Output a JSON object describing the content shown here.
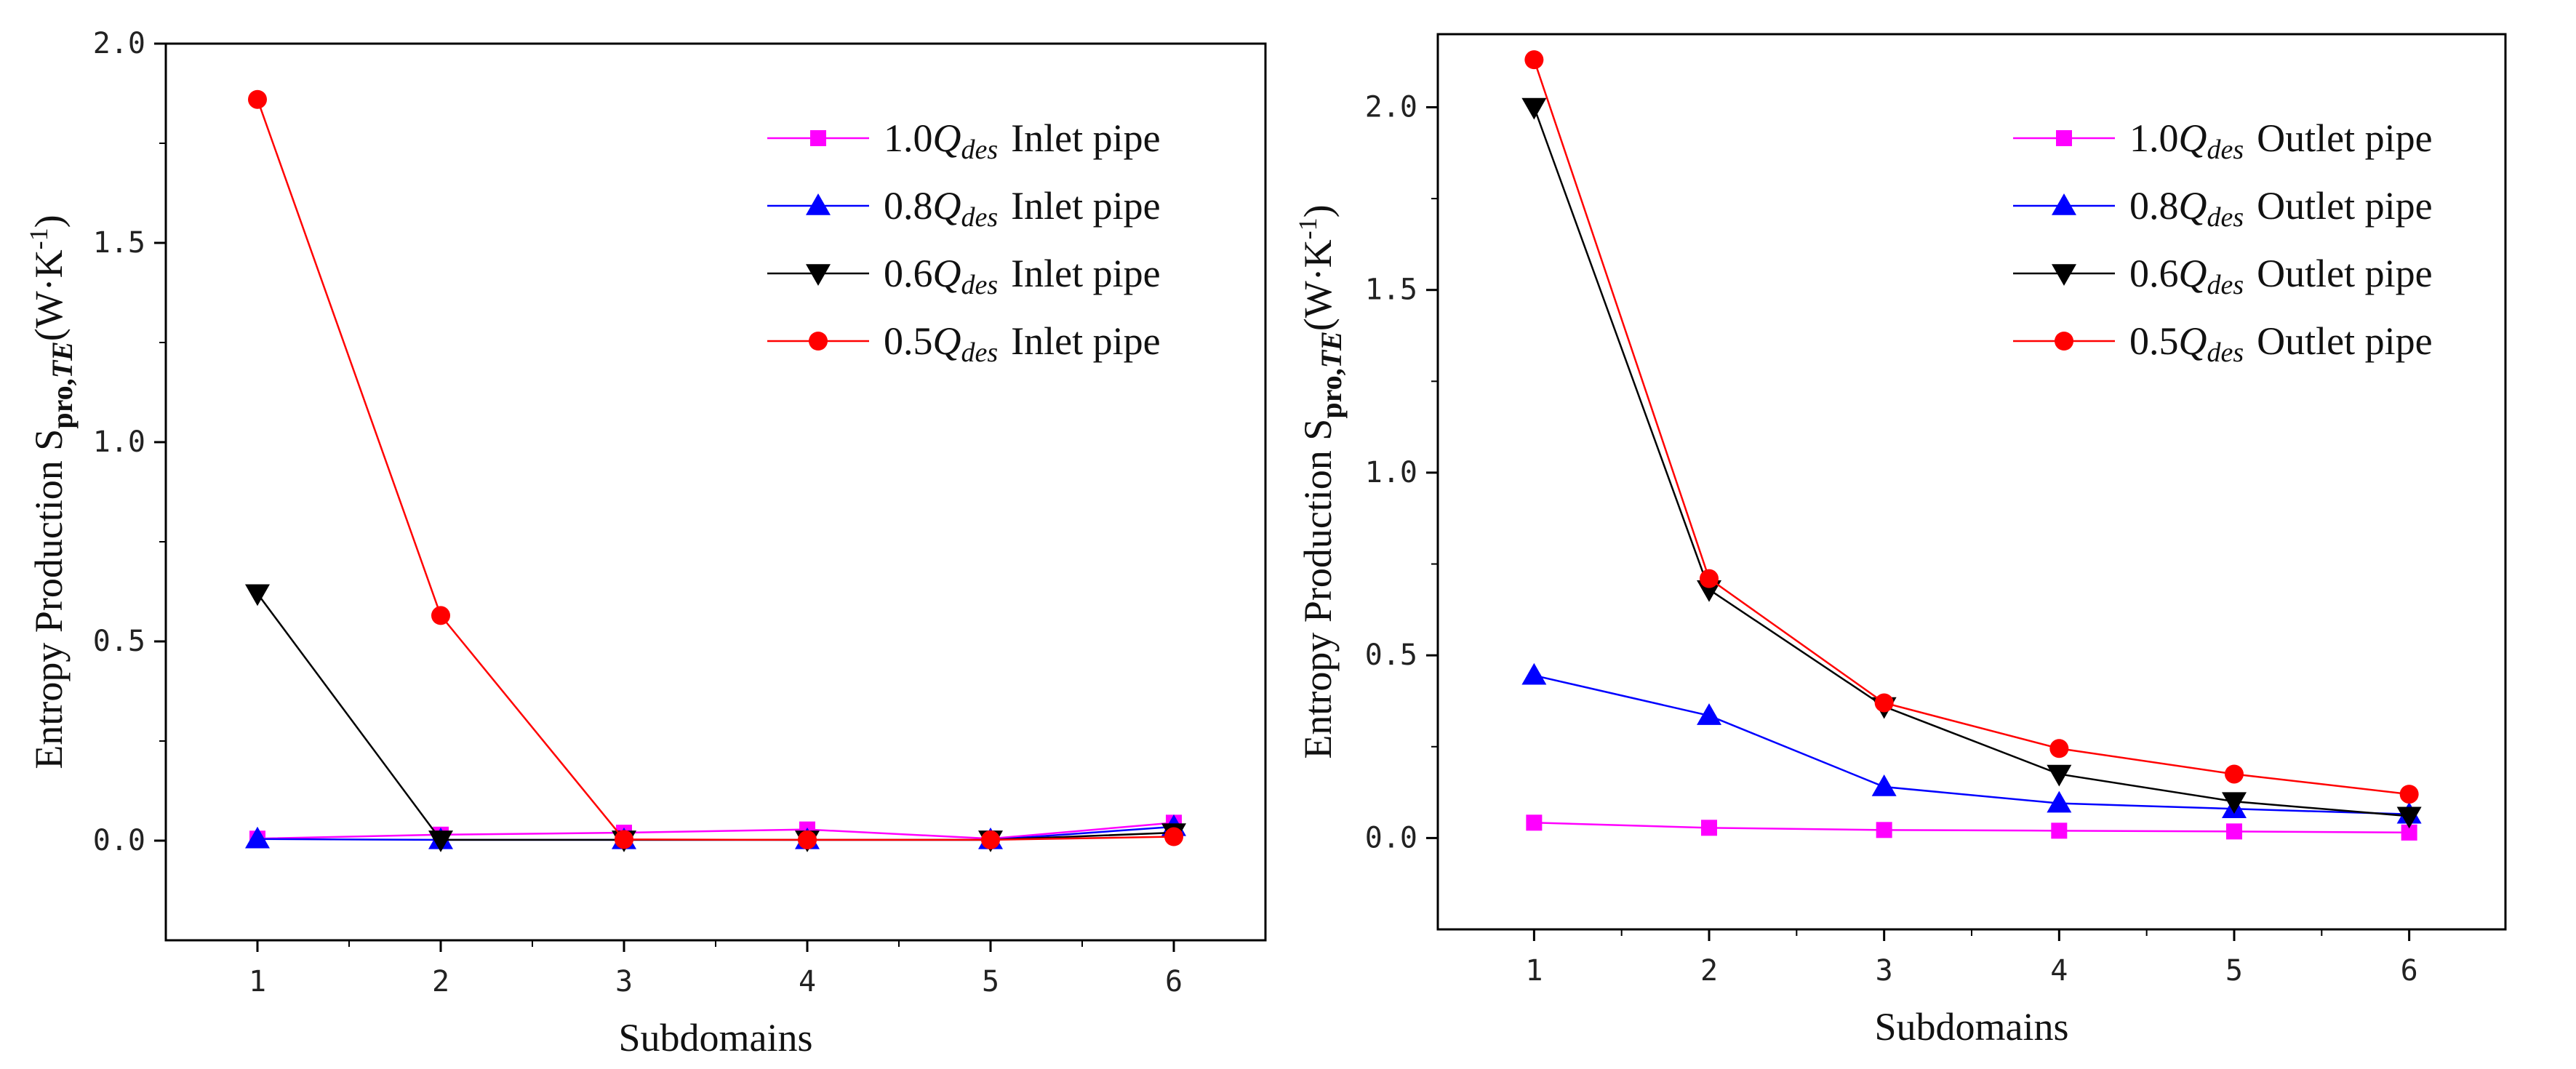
{
  "chart_data": [
    {
      "type": "line",
      "xlabel": "Subdomains",
      "ylabel": {
        "prefix": "Entropy Production S",
        "sub_pro": "pro,",
        "sub_te": "TE",
        "unit_open": "(W·K",
        "unit_sup": "-1",
        "unit_close": ")"
      },
      "x": [
        1,
        2,
        3,
        4,
        5,
        6
      ],
      "x_ticks": [
        "1",
        "2",
        "3",
        "4",
        "5",
        "6"
      ],
      "y_ticks": [
        "0.0",
        "0.5",
        "1.0",
        "1.5",
        "2.0"
      ],
      "ylim": [
        -0.25,
        2.0
      ],
      "xlim": [
        0.5,
        6.5
      ],
      "legend_position": "top-right",
      "series": [
        {
          "coef": "1.0",
          "q": "Q",
          "sub": "des",
          "suffix": "Inlet pipe",
          "color": "#ff00ff",
          "marker": "square",
          "values": [
            0.005,
            0.015,
            0.02,
            0.028,
            0.005,
            0.045
          ]
        },
        {
          "coef": "0.8",
          "q": "Q",
          "sub": "des",
          "suffix": "Inlet pipe",
          "color": "#0000ff",
          "marker": "triangle-up",
          "values": [
            0.004,
            0.002,
            0.002,
            0.002,
            0.002,
            0.035
          ]
        },
        {
          "coef": "0.6",
          "q": "Q",
          "sub": "des",
          "suffix": "Inlet pipe",
          "color": "#000000",
          "marker": "triangle-down",
          "values": [
            0.62,
            0.002,
            0.002,
            0.002,
            0.002,
            0.02
          ]
        },
        {
          "coef": "0.5",
          "q": "Q",
          "sub": "des",
          "suffix": "Inlet pipe",
          "color": "#ff0000",
          "marker": "circle",
          "values": [
            1.86,
            0.565,
            0.003,
            0.002,
            0.002,
            0.01
          ]
        }
      ]
    },
    {
      "type": "line",
      "xlabel": "Subdomains",
      "ylabel": {
        "prefix": "Entropy Production S",
        "sub_pro": "pro,",
        "sub_te": "TE",
        "unit_open": "(W·K",
        "unit_sup": "-1",
        "unit_close": ")"
      },
      "x": [
        1,
        2,
        3,
        4,
        5,
        6
      ],
      "x_ticks": [
        "1",
        "2",
        "3",
        "4",
        "5",
        "6"
      ],
      "y_ticks": [
        "0.0",
        "0.5",
        "1.0",
        "1.5",
        "2.0"
      ],
      "ylim": [
        -0.25,
        2.2
      ],
      "xlim": [
        0.45,
        6.55
      ],
      "legend_position": "top-right",
      "series": [
        {
          "coef": "1.0",
          "q": "Q",
          "sub": "des",
          "suffix": "Outlet pipe",
          "color": "#ff00ff",
          "marker": "square",
          "values": [
            0.042,
            0.028,
            0.022,
            0.02,
            0.018,
            0.015
          ]
        },
        {
          "coef": "0.8",
          "q": "Q",
          "sub": "des",
          "suffix": "Outlet pipe",
          "color": "#0000ff",
          "marker": "triangle-up",
          "values": [
            0.445,
            0.335,
            0.14,
            0.095,
            0.08,
            0.065
          ]
        },
        {
          "coef": "0.6",
          "q": "Q",
          "sub": "des",
          "suffix": "Outlet pipe",
          "color": "#000000",
          "marker": "triangle-down",
          "values": [
            2.0,
            0.68,
            0.36,
            0.175,
            0.1,
            0.06
          ]
        },
        {
          "coef": "0.5",
          "q": "Q",
          "sub": "des",
          "suffix": "Outlet pipe",
          "color": "#ff0000",
          "marker": "circle",
          "values": [
            2.13,
            0.71,
            0.37,
            0.245,
            0.175,
            0.12
          ]
        }
      ]
    }
  ]
}
